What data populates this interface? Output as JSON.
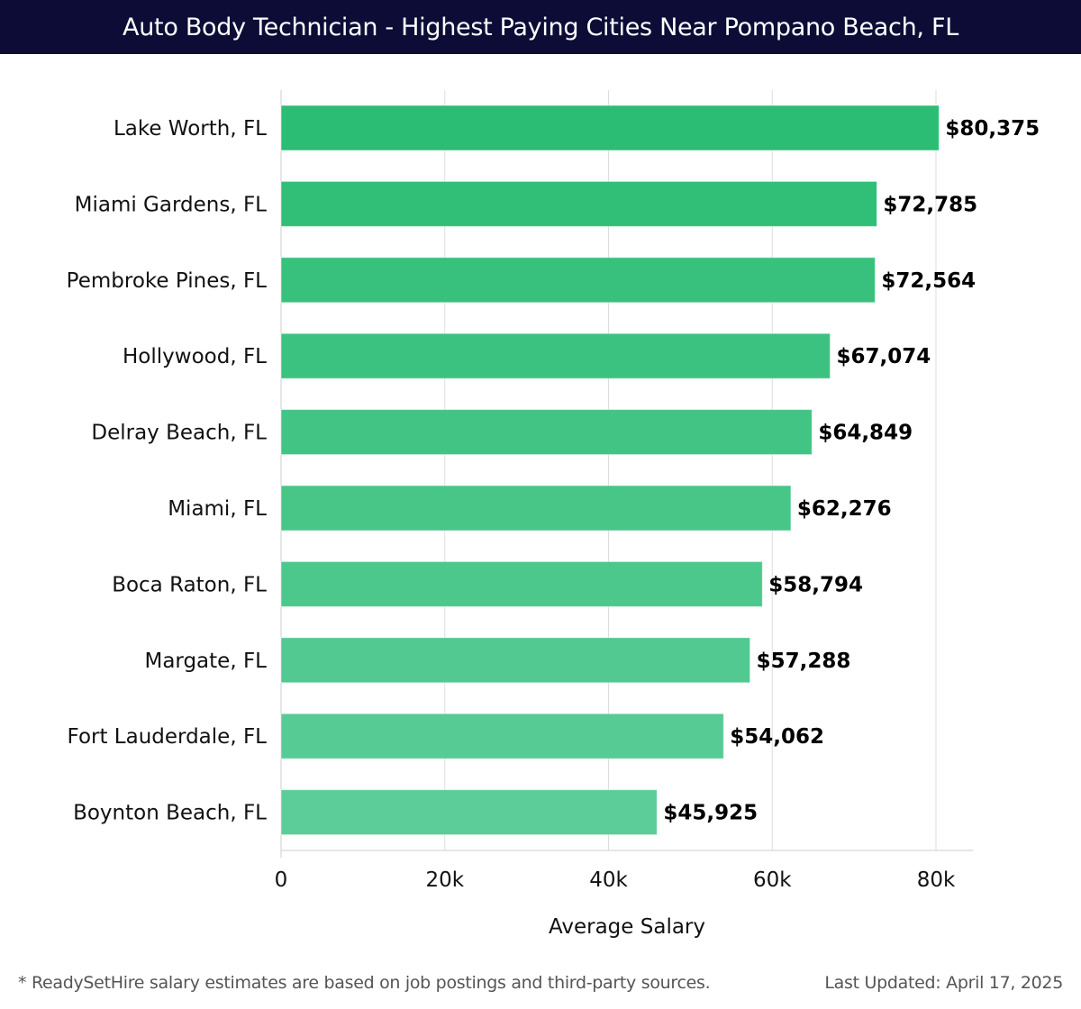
{
  "header": {
    "title": "Auto Body Technician - Highest Paying Cities Near Pompano Beach, FL"
  },
  "footer": {
    "note": "* ReadySetHire salary estimates are based on job postings and third-party sources.",
    "updated": "Last Updated: April 17, 2025"
  },
  "colors": {
    "header_bg": "#0c0c36",
    "bar_top": "#2cbd74",
    "bar_bottom": "#5ccd98",
    "grid": "#dddddd"
  },
  "chart_data": {
    "type": "bar",
    "orientation": "horizontal",
    "title": "Auto Body Technician - Highest Paying Cities Near Pompano Beach, FL",
    "xlabel": "Average Salary",
    "ylabel": "",
    "xlim": [
      0,
      84500
    ],
    "xticks": [
      0,
      20000,
      40000,
      60000,
      80000
    ],
    "xtick_labels": [
      "0",
      "20k",
      "40k",
      "60k",
      "80k"
    ],
    "grid": true,
    "categories": [
      "Lake Worth, FL",
      "Miami Gardens, FL",
      "Pembroke Pines, FL",
      "Hollywood, FL",
      "Delray Beach, FL",
      "Miami, FL",
      "Boca Raton, FL",
      "Margate, FL",
      "Fort Lauderdale, FL",
      "Boynton Beach, FL"
    ],
    "values": [
      80375,
      72785,
      72564,
      67074,
      64849,
      62276,
      58794,
      57288,
      54062,
      45925
    ],
    "value_labels": [
      "$80,375",
      "$72,785",
      "$72,564",
      "$67,074",
      "$64,849",
      "$62,276",
      "$58,794",
      "$57,288",
      "$54,062",
      "$45,925"
    ]
  }
}
